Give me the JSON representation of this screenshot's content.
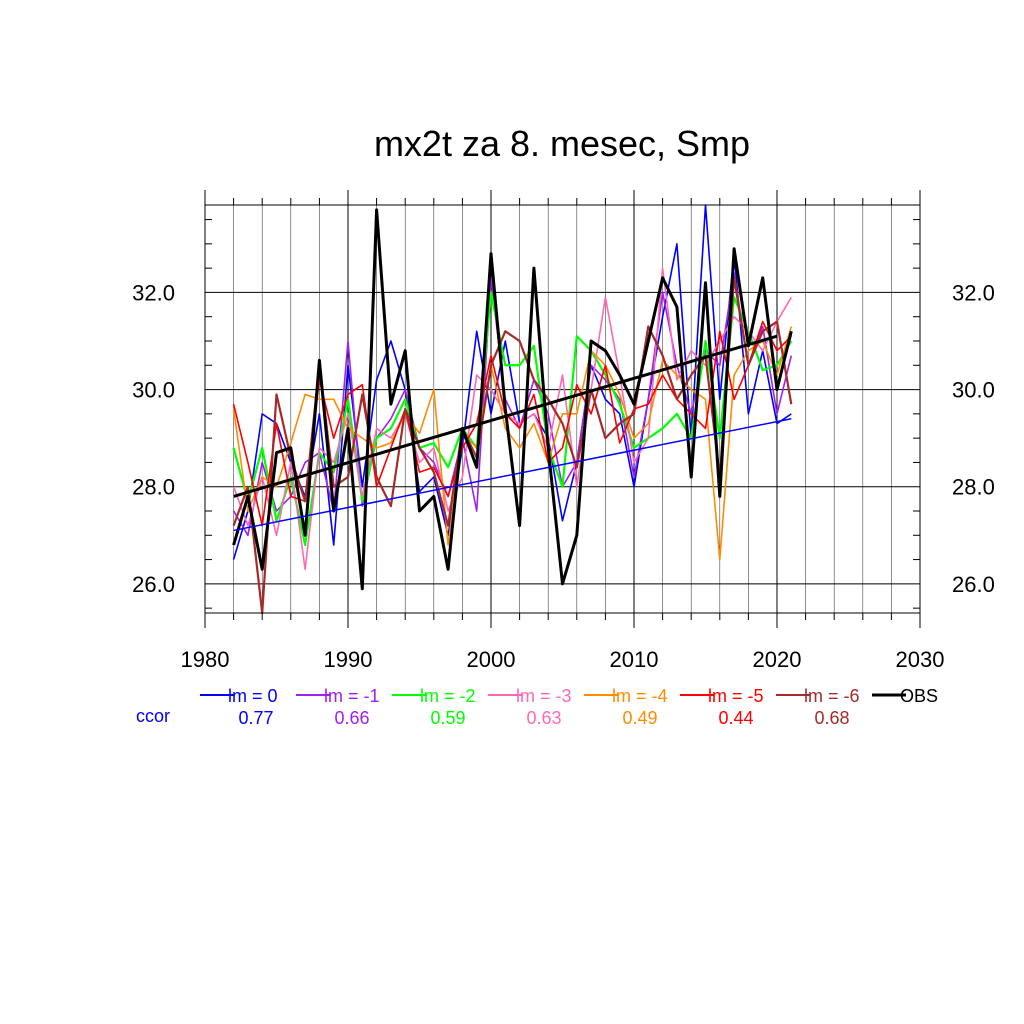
{
  "chart_data": {
    "type": "line",
    "title": "mx2t za 8. mesec, Smp",
    "xlabel": "",
    "ylabel": "",
    "xlim": [
      1980,
      2030
    ],
    "ylim": [
      25.4,
      33.8
    ],
    "x_ticks": [
      1980,
      1990,
      2000,
      2010,
      2020,
      2030
    ],
    "y_ticks": [
      26.0,
      28.0,
      30.0,
      32.0
    ],
    "y_tick_labels": [
      "26.0",
      "28.0",
      "30.0",
      "32.0"
    ],
    "grid": true,
    "legend_position": "bottom",
    "ccor_label": "ccor",
    "x": [
      1982,
      1983,
      1984,
      1985,
      1986,
      1987,
      1988,
      1989,
      1990,
      1991,
      1992,
      1993,
      1994,
      1995,
      1996,
      1997,
      1998,
      1999,
      2000,
      2001,
      2002,
      2003,
      2004,
      2005,
      2006,
      2007,
      2008,
      2009,
      2010,
      2011,
      2012,
      2013,
      2014,
      2015,
      2016,
      2017,
      2018,
      2019,
      2020,
      2021
    ],
    "series": [
      {
        "name": "lm = 0",
        "color": "#0000ff",
        "ccor": "0.77",
        "width": 1.6,
        "values": [
          26.5,
          27.5,
          29.5,
          29.3,
          28.5,
          27.8,
          29.5,
          26.8,
          30.5,
          28.0,
          30.2,
          31.0,
          30.0,
          27.9,
          28.2,
          27.0,
          28.8,
          31.2,
          29.5,
          31.0,
          29.3,
          29.5,
          29.0,
          27.3,
          28.5,
          30.5,
          29.8,
          29.5,
          28.0,
          29.8,
          31.5,
          33.0,
          29.0,
          33.8,
          29.8,
          32.8,
          29.5,
          30.8,
          29.3,
          29.5
        ],
        "trend": [
          27.1,
          29.4
        ]
      },
      {
        "name": "lm = -1",
        "color": "#a020f0",
        "ccor": "0.66",
        "width": 1.6,
        "values": [
          27.5,
          27.0,
          28.5,
          27.5,
          27.8,
          28.5,
          28.7,
          27.5,
          31.0,
          27.6,
          29.0,
          29.4,
          30.0,
          28.8,
          28.5,
          27.8,
          29.0,
          27.5,
          32.3,
          29.8,
          29.2,
          30.2,
          29.5,
          28.0,
          28.5,
          30.5,
          30.2,
          29.8,
          28.2,
          29.8,
          32.0,
          30.5,
          29.5,
          30.8,
          30.5,
          32.4,
          30.5,
          31.3,
          29.5,
          30.7
        ]
      },
      {
        "name": "lm = -2",
        "color": "#00ff00",
        "ccor": "0.59",
        "width": 2.2,
        "values": [
          28.8,
          27.7,
          28.8,
          27.3,
          28.2,
          26.8,
          28.7,
          28.3,
          29.8,
          27.7,
          29.0,
          29.2,
          29.8,
          28.8,
          28.9,
          28.4,
          29.2,
          28.8,
          32.0,
          30.5,
          30.5,
          30.9,
          28.8,
          28.0,
          31.1,
          30.8,
          30.3,
          29.7,
          28.8,
          29.0,
          29.2,
          29.5,
          29.0,
          31.0,
          29.0,
          31.9,
          31.2,
          30.4,
          30.5,
          31.0
        ]
      },
      {
        "name": "lm = -3",
        "color": "#ff69b4",
        "ccor": "0.63",
        "width": 1.6,
        "values": [
          28.0,
          27.2,
          28.2,
          27.0,
          28.5,
          26.3,
          28.8,
          28.5,
          29.5,
          27.8,
          29.2,
          29.0,
          29.5,
          28.5,
          28.8,
          27.5,
          28.2,
          30.3,
          30.0,
          29.5,
          29.3,
          29.5,
          28.8,
          30.3,
          28.0,
          30.0,
          31.9,
          30.3,
          28.5,
          29.0,
          32.5,
          30.2,
          30.8,
          30.5,
          31.0,
          31.5,
          31.2,
          30.8,
          31.4,
          31.9
        ]
      },
      {
        "name": "lm = -4",
        "color": "#ff8c00",
        "ccor": "0.49",
        "width": 1.6,
        "values": [
          29.6,
          27.5,
          28.2,
          28.0,
          28.9,
          29.9,
          29.8,
          29.8,
          29.2,
          29.0,
          28.8,
          28.9,
          29.5,
          29.1,
          30.0,
          26.8,
          29.1,
          28.8,
          30.5,
          29.2,
          28.8,
          29.3,
          28.5,
          29.5,
          29.5,
          30.8,
          30.5,
          29.9,
          29.0,
          29.3,
          30.6,
          30.3,
          30.0,
          29.8,
          26.5,
          30.3,
          30.8,
          31.0,
          30.3,
          31.3
        ]
      },
      {
        "name": "lm = -5",
        "color": "#ff0000",
        "ccor": "0.44",
        "width": 1.6,
        "values": [
          29.7,
          28.5,
          27.2,
          29.3,
          27.8,
          27.7,
          30.2,
          29.0,
          29.9,
          30.1,
          28.0,
          28.8,
          29.6,
          28.3,
          28.4,
          27.8,
          28.8,
          29.3,
          30.7,
          29.5,
          29.2,
          29.9,
          28.5,
          28.8,
          30.1,
          29.5,
          30.5,
          28.9,
          29.6,
          29.7,
          30.3,
          29.8,
          29.5,
          29.2,
          31.2,
          29.8,
          30.5,
          31.4,
          30.8,
          31.1
        ]
      },
      {
        "name": "lm = -6",
        "color": "#a52a2a",
        "ccor": "0.68",
        "width": 2.2,
        "values": [
          27.2,
          28.0,
          25.4,
          29.9,
          28.6,
          27.7,
          30.5,
          28.0,
          28.2,
          29.9,
          28.2,
          27.6,
          29.6,
          28.8,
          28.3,
          27.2,
          29.2,
          28.6,
          30.5,
          31.2,
          31.0,
          30.2,
          29.8,
          29.3,
          28.4,
          30.0,
          29.0,
          29.3,
          29.5,
          31.3,
          30.7,
          29.8,
          30.3,
          30.7,
          28.2,
          32.3,
          30.5,
          31.2,
          31.4,
          29.7
        ]
      },
      {
        "name": "OBS",
        "color": "#000000",
        "ccor": "",
        "width": 3.0,
        "values": [
          26.8,
          27.8,
          26.3,
          28.7,
          28.8,
          27.0,
          30.6,
          27.5,
          29.2,
          25.9,
          33.7,
          29.7,
          30.8,
          27.5,
          27.8,
          26.3,
          29.2,
          28.4,
          32.8,
          29.6,
          27.2,
          32.5,
          28.8,
          26.0,
          27.0,
          31.0,
          30.8,
          30.3,
          29.7,
          31.0,
          32.3,
          31.7,
          28.2,
          32.2,
          27.8,
          32.9,
          30.9,
          32.3,
          30.0,
          31.2
        ],
        "trend": [
          27.8,
          31.1
        ]
      }
    ]
  }
}
